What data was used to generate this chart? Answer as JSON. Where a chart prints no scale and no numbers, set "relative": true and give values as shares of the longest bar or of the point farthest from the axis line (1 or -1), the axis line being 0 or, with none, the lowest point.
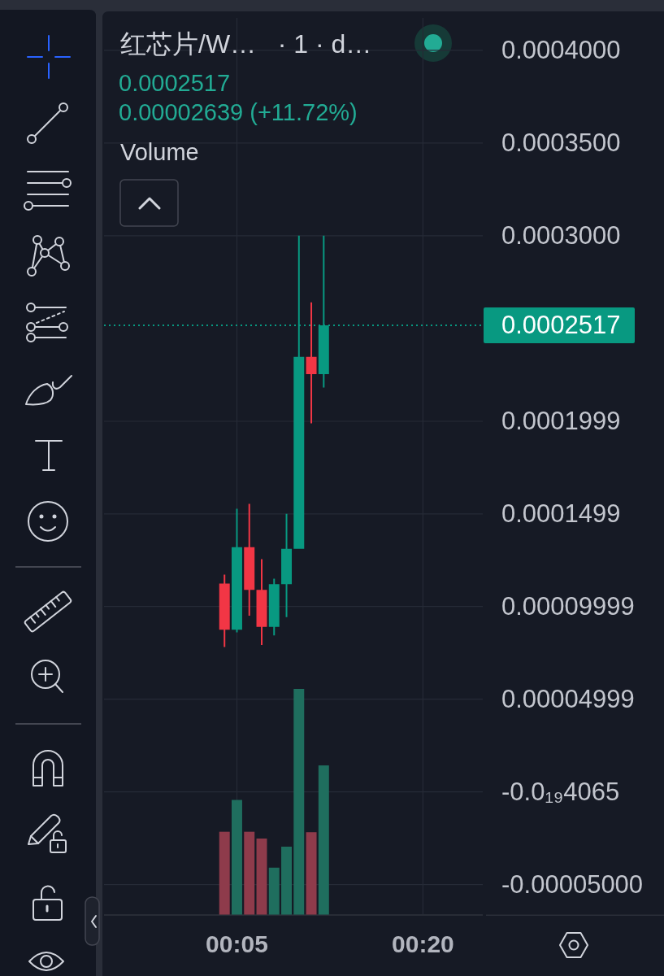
{
  "chart_data": [
    {
      "type": "candlestick",
      "title": "红芯片/W…   · 1 · d…",
      "annotations": [
        "0.0002517",
        "0.00002639 (+11.72%)"
      ],
      "x": [
        0.06667,
        0.08333,
        0.1,
        0.11667,
        0.13333,
        0.15,
        0.16667,
        0.18333,
        0.2
      ],
      "ohlc": [
        [
          0.0001124,
          0.0001172,
          7.81e-05,
          8.75e-05
        ],
        [
          8.75e-05,
          0.0001527,
          8.6e-05,
          0.000132
        ],
        [
          0.000132,
          0.0001554,
          9.5e-05,
          0.000109
        ],
        [
          0.000109,
          0.0001255,
          7.92e-05,
          8.9e-05
        ],
        [
          8.9e-05,
          0.000115,
          8.44e-05,
          0.000112
        ],
        [
          0.000112,
          0.00015,
          9.43e-05,
          0.0001311
        ],
        [
          0.0001311,
          0.0003,
          0.0001311,
          0.0002347
        ],
        [
          0.0002347,
          0.000264,
          0.0001988,
          0.0002253
        ],
        [
          0.0002253,
          0.0003,
          0.0002181,
          0.0002517
        ]
      ],
      "colors": [
        "#f23645",
        "#089981",
        "#f23645",
        "#f23645",
        "#089981",
        "#089981",
        "#089981",
        "#f23645",
        "#089981"
      ],
      "xlim": [
        -0.0952,
        0.4137
      ],
      "xticks": [
        {
          "value": 0.08333,
          "label": "00:05"
        },
        {
          "value": 0.33333,
          "label": "00:20"
        }
      ],
      "ylim": [
        -6.62e-05,
        0.0004175
      ],
      "yticks": [
        {
          "value": 0.0004,
          "label": "0.0004000"
        },
        {
          "value": 0.00035,
          "label": "0.0003500"
        },
        {
          "value": 0.0003,
          "label": "0.0003000"
        },
        0.0001999,
        0.0001499,
        {
          "value": 9.999e-05,
          "label": "0.00009999"
        },
        {
          "value": 4.999e-05,
          "label": "0.00004999"
        },
        {
          "value": -4.065e-20,
          "label": "-0.0₁₉4065"
        },
        {
          "value": -5e-05,
          "label": "-0.00005000"
        }
      ],
      "grid": true,
      "ref_lines": [
        {
          "axis": "y",
          "value": 0.0002517,
          "label": "0.0002517",
          "color": "#089981",
          "line_style": "dotted"
        }
      ]
    },
    {
      "type": "bar",
      "title": "Volume",
      "x": [
        0.06667,
        0.08333,
        0.1,
        0.11667,
        0.13333,
        0.15,
        0.16667,
        0.18333,
        0.2
      ],
      "values": [
        0.367,
        0.508,
        0.367,
        0.337,
        0.208,
        0.301,
        1,
        0.365,
        0.661
      ],
      "colors": [
        "#8e3b4b",
        "#1f6e5e",
        "#8e3b4b",
        "#8e3b4b",
        "#1f6e5e",
        "#1f6e5e",
        "#1f6e5e",
        "#8e3b4b",
        "#1f6e5e"
      ],
      "xlim": [
        -0.0952,
        0.4137
      ],
      "relative": true
    }
  ]
}
